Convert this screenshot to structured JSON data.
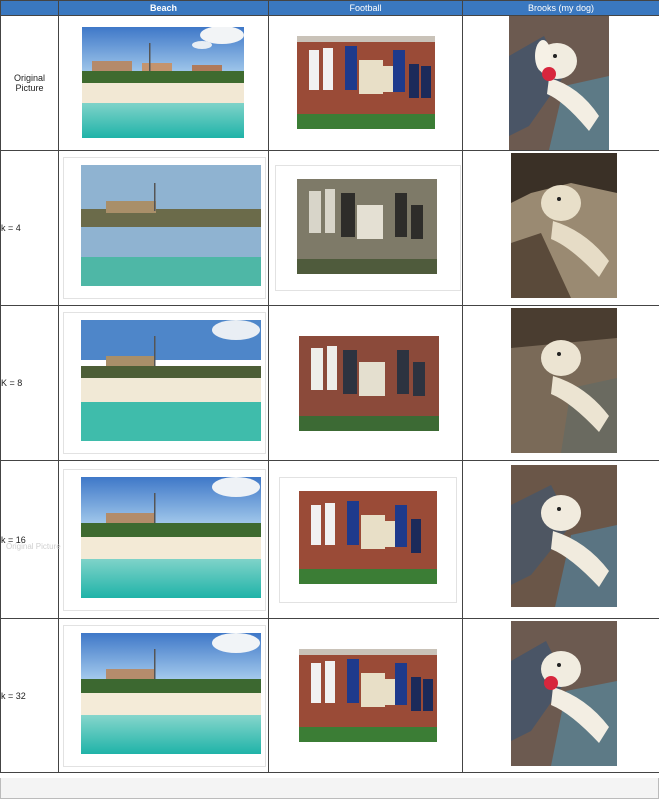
{
  "table": {
    "columns": [
      "Beach",
      "Football",
      "Brooks (my dog)"
    ],
    "rows": [
      {
        "label": "Original Picture"
      },
      {
        "label": "k = 4"
      },
      {
        "label": "K = 8"
      },
      {
        "label": "k = 16",
        "ghost": "Original Picture"
      },
      {
        "label": "k = 32"
      }
    ]
  }
}
